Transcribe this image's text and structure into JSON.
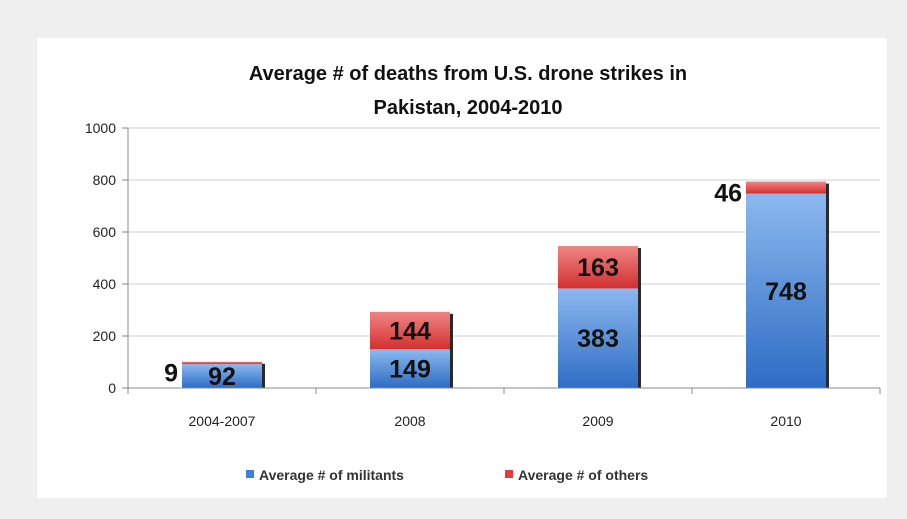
{
  "chart_data": {
    "type": "bar",
    "stacked": true,
    "title_lines": [
      "Average # of deaths from U.S. drone strikes in",
      "Pakistan, 2004-2010"
    ],
    "categories": [
      "2004-2007",
      "2008",
      "2009",
      "2010"
    ],
    "series": [
      {
        "name": "Average # of militants",
        "values": [
          92,
          149,
          383,
          748
        ],
        "color": "#3f7fd4"
      },
      {
        "name": "Average # of others",
        "values": [
          9,
          144,
          163,
          46
        ],
        "color": "#e03d3d"
      }
    ],
    "value_labels": {
      "militants": [
        "92",
        "149",
        "383",
        "748"
      ],
      "others": [
        "9",
        "144",
        "163",
        "46"
      ]
    },
    "yticks": [
      0,
      200,
      400,
      600,
      800,
      1000
    ],
    "ylim": [
      0,
      1000
    ],
    "grid": true,
    "legend_position": "bottom"
  }
}
